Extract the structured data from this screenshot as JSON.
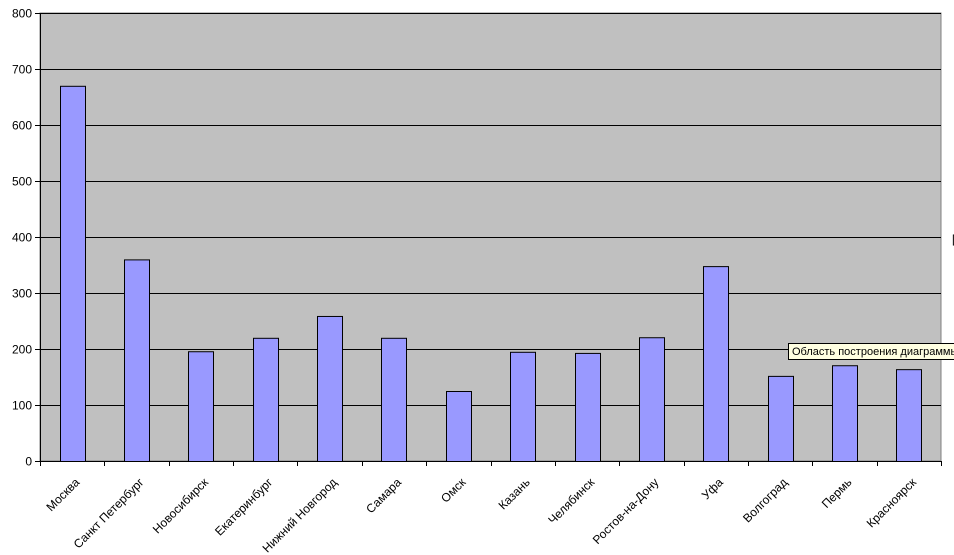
{
  "chart_data": {
    "type": "bar",
    "categories": [
      "Москва",
      "Санкт Петербург",
      "Новосибирск",
      "Екатеринбург",
      "Нижний Новгород",
      "Самара",
      "Омск",
      "Казань",
      "Челябинск",
      "Ростов-на-Дону",
      "Уфа",
      "Волгоград",
      "Пермь",
      "Красноярск"
    ],
    "values": [
      670,
      360,
      196,
      220,
      259,
      220,
      125,
      195,
      193,
      221,
      348,
      152,
      171,
      164
    ],
    "color": "#9999ff",
    "ylim": [
      0,
      800
    ],
    "yticks": [
      0,
      100,
      200,
      300,
      400,
      500,
      600,
      700,
      800
    ],
    "grid": true,
    "annotation": "Область построения диаграммы"
  }
}
